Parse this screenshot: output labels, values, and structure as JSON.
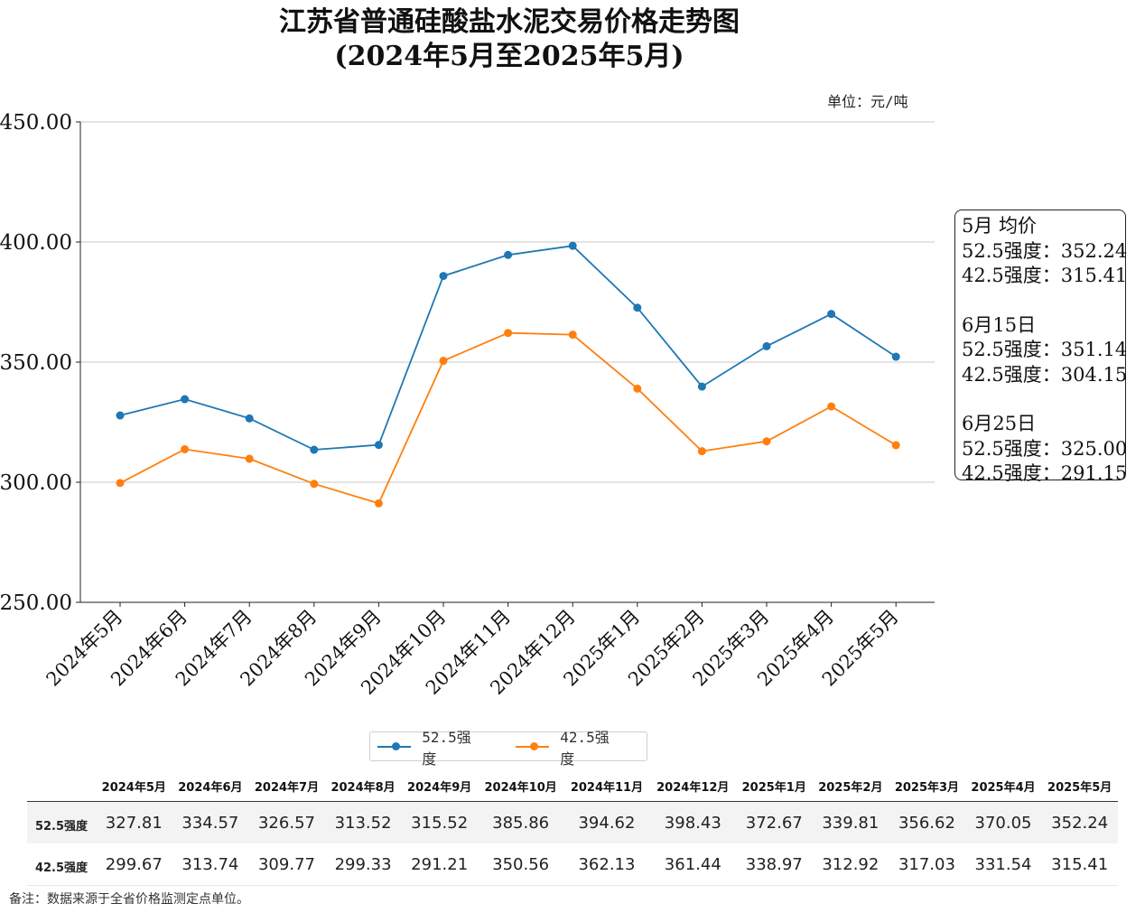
{
  "chart_data": {
    "type": "line",
    "title": "江苏省普通硅酸盐水泥交易价格走势图",
    "subtitle": "(2024年5月至2025年5月)",
    "unit_label": "单位：元/吨",
    "categories": [
      "2024年5月",
      "2024年6月",
      "2024年7月",
      "2024年8月",
      "2024年9月",
      "2024年10月",
      "2024年11月",
      "2024年12月",
      "2025年1月",
      "2025年2月",
      "2025年3月",
      "2025年4月",
      "2025年5月"
    ],
    "series": [
      {
        "name": "52.5强度",
        "color": "#1f77b4",
        "values": [
          327.81,
          334.57,
          326.57,
          313.52,
          315.52,
          385.86,
          394.62,
          398.43,
          372.67,
          339.81,
          356.62,
          370.05,
          352.24
        ]
      },
      {
        "name": "42.5强度",
        "color": "#ff7f0e",
        "values": [
          299.67,
          313.74,
          309.77,
          299.33,
          291.21,
          350.56,
          362.13,
          361.44,
          338.97,
          312.92,
          317.03,
          331.54,
          315.41
        ]
      }
    ],
    "ylim": [
      250,
      450
    ],
    "yticks": [
      "450.00",
      "400.00",
      "350.00",
      "300.00",
      "250.00"
    ],
    "ytick_values": [
      450,
      400,
      350,
      300,
      250
    ],
    "grid": "horizontal",
    "legend_position": "bottom-center"
  },
  "annotation": {
    "groups": [
      {
        "heading": "5月 均价",
        "rows": [
          {
            "label": "52.5强度：",
            "value": "352.24"
          },
          {
            "label": "42.5强度：",
            "value": "315.41"
          }
        ]
      },
      {
        "heading": "6月15日",
        "rows": [
          {
            "label": "52.5强度：",
            "value": "351.14"
          },
          {
            "label": "42.5强度：",
            "value": "304.15"
          }
        ]
      },
      {
        "heading": "6月25日",
        "rows": [
          {
            "label": "52.5强度：",
            "value": "325.00"
          },
          {
            "label": "42.5强度：",
            "value": "291.15"
          }
        ]
      }
    ]
  },
  "table": {
    "headers": [
      "2024年5月",
      "2024年6月",
      "2024年7月",
      "2024年8月",
      "2024年9月",
      "2024年10月",
      "2024年11月",
      "2024年12月",
      "2025年1月",
      "2025年2月",
      "2025年3月",
      "2025年4月",
      "2025年5月"
    ],
    "rows": [
      {
        "label": "52.5强度",
        "values": [
          "327.81",
          "334.57",
          "326.57",
          "313.52",
          "315.52",
          "385.86",
          "394.62",
          "398.43",
          "372.67",
          "339.81",
          "356.62",
          "370.05",
          "352.24"
        ]
      },
      {
        "label": "42.5强度",
        "values": [
          "299.67",
          "313.74",
          "309.77",
          "299.33",
          "291.21",
          "350.56",
          "362.13",
          "361.44",
          "338.97",
          "312.92",
          "317.03",
          "331.54",
          "315.41"
        ]
      }
    ]
  },
  "note": "备注：数据来源于全省价格监测定点单位。"
}
